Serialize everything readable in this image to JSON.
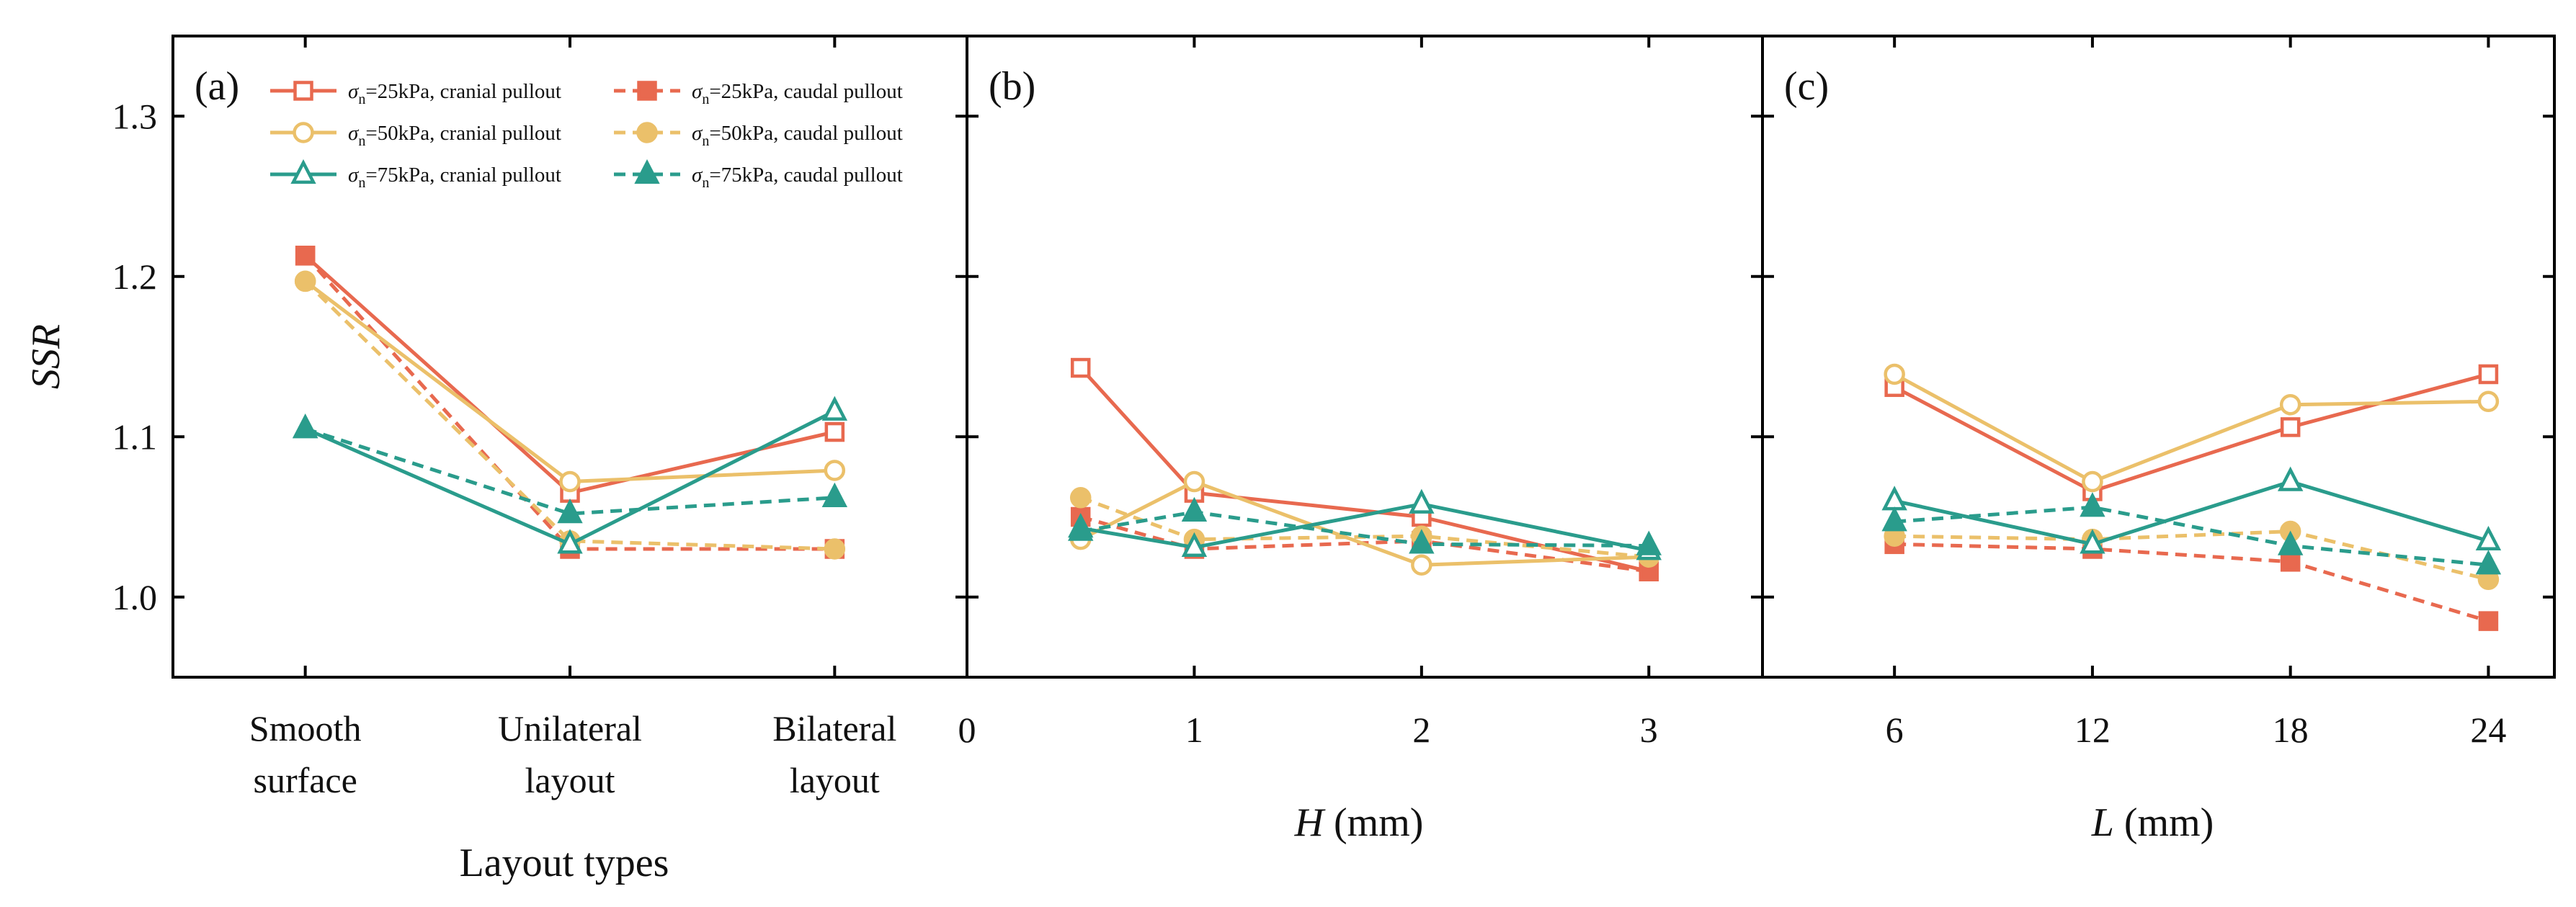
{
  "figure": {
    "ylabel": "SSR",
    "ylim": [
      0.95,
      1.35
    ],
    "yticks": [
      "1.0",
      "1.1",
      "1.2",
      "1.3"
    ],
    "ytick_values": [
      1.0,
      1.1,
      1.2,
      1.3
    ]
  },
  "legend": {
    "position": "top-left of panel (a)",
    "entries": [
      {
        "sigma": "σ",
        "sub": "n",
        "text": "=25kPa, cranial pullout",
        "color": "#E8694F",
        "marker": "square",
        "filled": false,
        "dashed": false
      },
      {
        "sigma": "σ",
        "sub": "n",
        "text": "=25kPa, caudal pullout",
        "color": "#E8694F",
        "marker": "square",
        "filled": true,
        "dashed": true
      },
      {
        "sigma": "σ",
        "sub": "n",
        "text": "=50kPa, cranial pullout",
        "color": "#EBC06A",
        "marker": "circle",
        "filled": false,
        "dashed": false
      },
      {
        "sigma": "σ",
        "sub": "n",
        "text": "=50kPa, caudal pullout",
        "color": "#EBC06A",
        "marker": "circle",
        "filled": true,
        "dashed": true
      },
      {
        "sigma": "σ",
        "sub": "n",
        "text": "=75kPa, cranial pullout",
        "color": "#2A9C8C",
        "marker": "triangle",
        "filled": false,
        "dashed": false
      },
      {
        "sigma": "σ",
        "sub": "n",
        "text": "=75kPa, caudal pullout",
        "color": "#2A9C8C",
        "marker": "triangle",
        "filled": true,
        "dashed": true
      }
    ]
  },
  "chart_data": [
    {
      "type": "line",
      "panel": "(a)",
      "xlabel": "Layout types",
      "xlabel_italic": "",
      "xlabel_rest": "",
      "ylabel": "SSR",
      "ylim": [
        0.95,
        1.35
      ],
      "xlim": [
        -0.5,
        2.5
      ],
      "x": [
        0,
        1,
        2
      ],
      "categories": [
        [
          "Smooth",
          "surface"
        ],
        [
          "Unilateral",
          "layout"
        ],
        [
          "Bilateral",
          "layout"
        ]
      ],
      "xticks": [],
      "series": [
        {
          "values": [
            1.213,
            1.065,
            1.103
          ],
          "color": "#E8694F",
          "marker": "square",
          "filled": false,
          "dashed": false
        },
        {
          "values": [
            1.213,
            1.03,
            1.03
          ],
          "color": "#E8694F",
          "marker": "square",
          "filled": true,
          "dashed": true
        },
        {
          "values": [
            1.197,
            1.072,
            1.079
          ],
          "color": "#EBC06A",
          "marker": "circle",
          "filled": false,
          "dashed": false
        },
        {
          "values": [
            1.197,
            1.035,
            1.03
          ],
          "color": "#EBC06A",
          "marker": "circle",
          "filled": true,
          "dashed": true
        },
        {
          "values": [
            1.105,
            1.033,
            1.116
          ],
          "color": "#2A9C8C",
          "marker": "triangle",
          "filled": false,
          "dashed": false
        },
        {
          "values": [
            1.105,
            1.052,
            1.062
          ],
          "color": "#2A9C8C",
          "marker": "triangle",
          "filled": true,
          "dashed": true
        }
      ],
      "grid": false
    },
    {
      "type": "line",
      "panel": "(b)",
      "xlabel": "",
      "xlabel_italic": "H",
      "xlabel_rest": " (mm)",
      "ylabel": "SSR",
      "ylim": [
        0.95,
        1.35
      ],
      "xlim": [
        0,
        3.5
      ],
      "x": [
        0.5,
        1,
        2,
        3
      ],
      "categories": [],
      "xticks": [
        0,
        1,
        2,
        3
      ],
      "series": [
        {
          "values": [
            1.143,
            1.065,
            1.05,
            1.016
          ],
          "color": "#E8694F",
          "marker": "square",
          "filled": false,
          "dashed": false
        },
        {
          "values": [
            1.05,
            1.03,
            1.035,
            1.016
          ],
          "color": "#E8694F",
          "marker": "square",
          "filled": true,
          "dashed": true
        },
        {
          "values": [
            1.036,
            1.072,
            1.02,
            1.025
          ],
          "color": "#EBC06A",
          "marker": "circle",
          "filled": false,
          "dashed": false
        },
        {
          "values": [
            1.062,
            1.036,
            1.038,
            1.025
          ],
          "color": "#EBC06A",
          "marker": "circle",
          "filled": true,
          "dashed": true
        },
        {
          "values": [
            1.043,
            1.031,
            1.058,
            1.029
          ],
          "color": "#2A9C8C",
          "marker": "triangle",
          "filled": false,
          "dashed": false
        },
        {
          "values": [
            1.041,
            1.053,
            1.033,
            1.032
          ],
          "color": "#2A9C8C",
          "marker": "triangle",
          "filled": true,
          "dashed": true
        }
      ],
      "grid": false
    },
    {
      "type": "line",
      "panel": "(c)",
      "xlabel": "",
      "xlabel_italic": "L",
      "xlabel_rest": " (mm)",
      "ylabel": "SSR",
      "ylim": [
        0.95,
        1.35
      ],
      "xlim": [
        2,
        26
      ],
      "x": [
        6,
        12,
        18,
        24
      ],
      "categories": [],
      "xticks": [
        6,
        12,
        18,
        24
      ],
      "series": [
        {
          "values": [
            1.131,
            1.066,
            1.106,
            1.139
          ],
          "color": "#E8694F",
          "marker": "square",
          "filled": false,
          "dashed": false
        },
        {
          "values": [
            1.033,
            1.03,
            1.022,
            0.985
          ],
          "color": "#E8694F",
          "marker": "square",
          "filled": true,
          "dashed": true
        },
        {
          "values": [
            1.139,
            1.072,
            1.12,
            1.122
          ],
          "color": "#EBC06A",
          "marker": "circle",
          "filled": false,
          "dashed": false
        },
        {
          "values": [
            1.038,
            1.036,
            1.041,
            1.011
          ],
          "color": "#EBC06A",
          "marker": "circle",
          "filled": true,
          "dashed": true
        },
        {
          "values": [
            1.06,
            1.033,
            1.072,
            1.035
          ],
          "color": "#2A9C8C",
          "marker": "triangle",
          "filled": false,
          "dashed": false
        },
        {
          "values": [
            1.047,
            1.056,
            1.032,
            1.02
          ],
          "color": "#2A9C8C",
          "marker": "triangle",
          "filled": true,
          "dashed": true
        }
      ],
      "grid": false
    }
  ]
}
